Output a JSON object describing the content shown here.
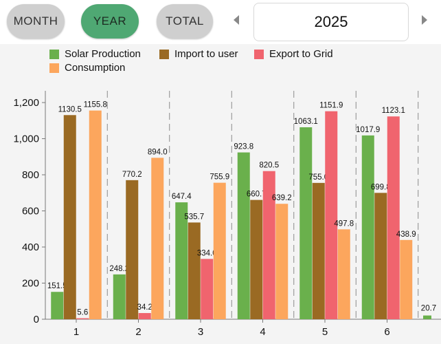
{
  "tabs": [
    {
      "label": "MONTH",
      "active": false
    },
    {
      "label": "YEAR",
      "active": true
    },
    {
      "label": "TOTAL",
      "active": false
    }
  ],
  "year_selector": {
    "value": "2025"
  },
  "colors": {
    "active_tab": "#4fa873",
    "inactive_tab": "#cfcfcf",
    "chart_background": "#f4f4f4"
  },
  "chart_data": {
    "type": "bar",
    "categories": [
      "1",
      "2",
      "3",
      "4",
      "5",
      "6"
    ],
    "series": [
      {
        "name": "Solar Production",
        "color": "#6ab04c",
        "values": [
          151.5,
          248.2,
          647.4,
          923.8,
          1063.1,
          1017.9
        ],
        "labels": [
          "151.5",
          "248.2",
          "647.4",
          "923.8",
          "1063.1",
          "1017.9"
        ]
      },
      {
        "name": "Import to user",
        "color": "#9a6a23",
        "values": [
          1130.5,
          770.2,
          535.7,
          660.7,
          755.0,
          699.8
        ],
        "labels": [
          "1130.5",
          "770.2",
          "535.7",
          "660.7",
          "755.0",
          "699.8"
        ]
      },
      {
        "name": "Export to Grid",
        "color": "#f0646e",
        "values": [
          5.6,
          34.2,
          334.0,
          820.5,
          1151.9,
          1123.1
        ],
        "labels": [
          "5.6",
          "34.2",
          "334.0",
          "820.5",
          "1151.9",
          "1123.1"
        ]
      },
      {
        "name": "Consumption",
        "color": "#fca65d",
        "values": [
          1155.8,
          894.0,
          755.9,
          639.2,
          497.8,
          438.9
        ],
        "labels": [
          "1155.8",
          "894.0",
          "755.9",
          "639.2",
          "497.8",
          "438.9"
        ]
      }
    ],
    "extra_bar": {
      "series": "Solar Production",
      "value": 20.7,
      "label": "20.7",
      "category_index": 7
    },
    "ylim": [
      0,
      1200
    ],
    "yticks": [
      {
        "value": 0,
        "label": "0"
      },
      {
        "value": 200,
        "label": "200"
      },
      {
        "value": 400,
        "label": "400"
      },
      {
        "value": 600,
        "label": "600"
      },
      {
        "value": 800,
        "label": "800"
      },
      {
        "value": 1000,
        "label": "1,000"
      },
      {
        "value": 1200,
        "label": "1,200"
      }
    ],
    "grid": "vertical-dashed",
    "legend_position": "top"
  }
}
